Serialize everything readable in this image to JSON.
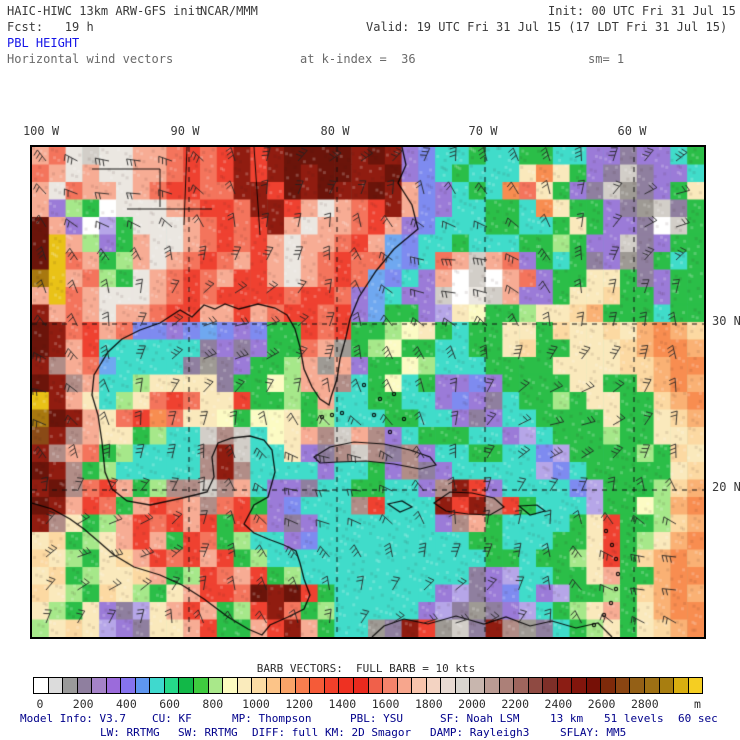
{
  "header": {
    "title_left": "HAIC-HIWC 13km ARW-GFS init",
    "title_center": "NCAR/MMM",
    "init_label": "Init: 00 UTC Fri 31 Jul 15",
    "fcst_label": "Fcst:   19 h",
    "valid_label": "Valid: 19 UTC Fri 31 Jul 15 (17 LDT Fri 31 Jul 15)",
    "field_title": "PBL HEIGHT",
    "subtitle": "Horizontal wind vectors",
    "k_index_label": "at k-index =  36",
    "smoothing_label": "sm= 1"
  },
  "map": {
    "lon_labels": [
      "100 W",
      "90 W",
      "80 W",
      "70 W",
      "60 W"
    ],
    "lat_labels": [
      "30 N",
      "20 N"
    ],
    "field_grid": {
      "palette": {
        "W": "#FFFFFF",
        "l": "#EBE7E1",
        "L": "#D2CEC8",
        "G": "#9E9A94",
        "M": "#B18D87",
        "m": "#8F7F9F",
        "P": "#9B7BD8",
        "p": "#B6A6E8",
        "B": "#7E8BF0",
        "b": "#6FA8F0",
        "T": "#40DCCA",
        "E": "#2BBE48",
        "g": "#A6E88A",
        "Y": "#FCFBC4",
        "c": "#FAE9BC",
        "t": "#FCD9A2",
        "o": "#FAB174",
        "O": "#F88D50",
        "R": "#EF4130",
        "r": "#F4745C",
        "s": "#F7AC94",
        "D": "#901C10",
        "K": "#6B140A",
        "N": "#8A4A16",
        "A": "#A8780F",
        "U": "#E9C217"
      },
      "rows": [
        "srlLllssrRrRDRDKKKKDKDPBTTETTEETTPPmPPTE",
        "rslsllssrRrRDRDKDKKDDKPBTETTTcOcEPmLmPPT",
        "slrsslsrRRrrDDRKDKDDKDsBPTETOrcEPmLGmPEc",
        "sPgEWlllsrRRrDDRslsrRDsBPTTEETOcEEPmGLmE",
        "KsPWpElllsrRrRDslssrRsPBTTTEETTEcEPPmWLE",
        "KUsgPEsllsrRrRslssrRsbBTTETTTEEgEPPLmPEE",
        "KUrsEgslsrRrsRslsrRrrbBTrsLsrPETEmPGmETE",
        "AUsrgElsrRrsRRslsrRrbBTPsWLWsrPEEccEmPEE",
        "sUrslllsrRrRRRRrRRrPbTPPLWlLsPPEcctEEPEE",
        "DsrslssrRRssRsrRRrRPbEEPpcYEEgcctoEEETEE",
        "KDrRsrBBPBbBPBEERrREEgYcETEEccEtcctcoOot",
        "KDsRTTTTTTmPmPEErsGEgYEETTEEctEEccctoOOo",
        "DMsrbTTTTmGmPEEgsGsPEEYgTTTEEEEccccttoOO",
        "KDMsTTgccccmEEYgssMTEYTEPPBPEEEEccEEtoOo",
        "UDscTgcrRrccREEgEsTTEETTPBPmTEEgEccEEtoO",
        "AKDscrROrccYEYYcEgTTTEETTPmPTTEEEEcEEcto",
        "NDMsccEgTTLMLTYcsMLsMPTEEETTPpTEEEgEEcct",
        "DMsrEgTTTTMDLTTcPmMLMmMPTTEETTBpEEEEgEtc",
        "KDMEgTTTTTMDMTTTTPTTEPMmPTTTTTpBTEEEEEct",
        "DKMrRsEgMMLMsTPPmTTEETTPMDRPTTTTBpEEEgto",
        "KDsRrEsRrsMrREPBTTTMRTTTDRDMRETTTpEEYgoO",
        "DMcEgsRrRsRERrPmPTTTTTTTPMsETTTTEcREEgto",
        "ctEgcsRsERrEgTTPBTTTTTTTTTEETTTEEcREgcoO",
        "tcgEctsRrRsREgTTTTTTTTTTTTTEETEEgcREtoOo",
        "ctEgcctsEgRrsREgTTTTTTTTTTmPpTTEEcsEEoOO",
        "tcgEtcgEcsRRrKDKRETTTTTTPpmPBTPpEEgEtoOo",
        "cgEcPmpcsRsEgRDrEgTTTTTPpmGmPpTEgcsEcoOO",
        "gctcpPmccsREEsRDsETTGmDRGLmDMGmTEgcEctoO"
      ]
    }
  },
  "barb_legend": "BARB VECTORS:  FULL BARB = 10 kts",
  "colorbar": {
    "unit": "m",
    "tick_labels": [
      "0",
      "200",
      "400",
      "600",
      "800",
      "1000",
      "1200",
      "1400",
      "1600",
      "1800",
      "2000",
      "2200",
      "2400",
      "2600",
      "2800"
    ],
    "colors": [
      "#FFFFFF",
      "#DCDCDC",
      "#9A9A9A",
      "#8F7F9F",
      "#A583C8",
      "#9B6BDB",
      "#8573EE",
      "#5E96F0",
      "#3FD9CE",
      "#25D98A",
      "#12B848",
      "#3FCC3F",
      "#A9E88A",
      "#FCFBC0",
      "#FAEBBC",
      "#FCDCA4",
      "#FCC488",
      "#FAA468",
      "#F87E4E",
      "#F55B38",
      "#F2402A",
      "#EE3122",
      "#EA2A1E",
      "#F0604A",
      "#F4836B",
      "#F7A68D",
      "#F9C4AC",
      "#F3D3C2",
      "#E8DAD2",
      "#D8D4CE",
      "#C8B6AE",
      "#BA9B93",
      "#AC8078",
      "#9E655D",
      "#8F4A42",
      "#7E2F28",
      "#8B1D14",
      "#82150C",
      "#761006",
      "#7E2A0A",
      "#8A4512",
      "#946016",
      "#9E7014",
      "#A87E10",
      "#D8AE10",
      "#F5CE22"
    ]
  },
  "footer": {
    "line1": [
      "Model Info: V3.7",
      "CU: KF",
      "MP: Thompson",
      "PBL: YSU",
      "SF: Noah LSM",
      "13 km",
      "51 levels",
      "60 sec"
    ],
    "line2": [
      "LW: RRTMG",
      "SW: RRTMG",
      "DIFF: full",
      "KM: 2D Smagor",
      "DAMP: Rayleigh3",
      "SFLAY: MM5"
    ]
  },
  "colors": {
    "field_title": "#1515E8",
    "header_text": "#3A3A3A",
    "subtitle_text": "#6A6A6A",
    "footer_text": "#00008B",
    "map_frame": "#000000",
    "barb_color": "#222222"
  },
  "chart_data": {
    "type": "heatmap",
    "title": "PBL HEIGHT",
    "units": "m",
    "model": "HAIC-HIWC 13km ARW-GFS init",
    "institution": "NCAR/MMM",
    "init_time": "00 UTC Fri 31 Jul 15",
    "forecast_hour": "19 h",
    "valid_time": "19 UTC Fri 31 Jul 15 (17 LDT Fri 31 Jul 15)",
    "level": "at k-index =  36",
    "smoothing": "sm= 1",
    "overlay": "Horizontal wind vectors",
    "barb_scale": "BARB VECTORS:  FULL BARB = 10 kts",
    "x_tick_labels": [
      "100 W",
      "90 W",
      "80 W",
      "70 W",
      "60 W"
    ],
    "y_tick_labels": [
      "30 N",
      "20 N"
    ],
    "colorbar_min": 0,
    "colorbar_max": 2800,
    "colorbar_interval": 200,
    "legend_position": "bottom",
    "grid": "dashed lat/lon lines",
    "region": "Gulf of Mexico / Caribbean / western Atlantic"
  }
}
